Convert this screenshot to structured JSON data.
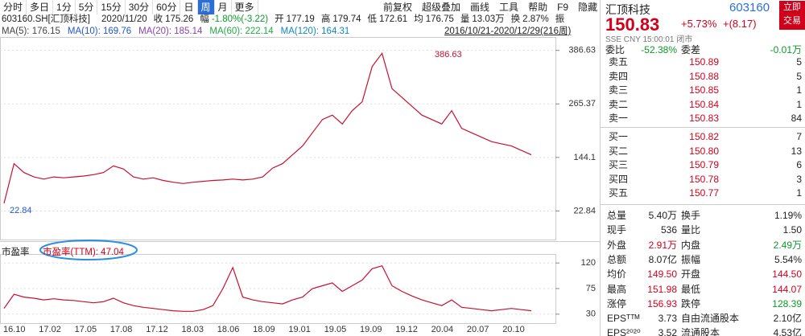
{
  "toolbar": {
    "periods": [
      "分时",
      "多日",
      "1分",
      "5分",
      "15分",
      "30分",
      "60分",
      "日",
      "周",
      "月",
      "更多"
    ],
    "active": "周",
    "tools": [
      "前复权",
      "超级叠加",
      "画线",
      "工具",
      "帮助",
      "F9",
      "隐藏"
    ]
  },
  "quote_bar": {
    "symbol": "603160.SH[汇顶科技]",
    "date": "2020/11/20",
    "items": [
      {
        "label": "收",
        "value": "175.26",
        "color": "#222"
      },
      {
        "label": "幅",
        "value": "-1.80%(-3.22)",
        "color": "#0a9a2a"
      },
      {
        "label": "开",
        "value": "177.19",
        "color": "#222"
      },
      {
        "label": "高",
        "value": "179.74",
        "color": "#222"
      },
      {
        "label": "低",
        "value": "172.61",
        "color": "#222"
      },
      {
        "label": "均",
        "value": "176.75",
        "color": "#222"
      },
      {
        "label": "量",
        "value": "13.03万",
        "color": "#222"
      },
      {
        "label": "换",
        "value": "2.87%",
        "color": "#222"
      }
    ],
    "tail": "振"
  },
  "ma_bar": [
    {
      "text": "MA(5): 176.15",
      "color": "#444"
    },
    {
      "text": "MA(10): 169.76",
      "color": "#2255cc"
    },
    {
      "text": "MA(20): 185.14",
      "color": "#8844aa"
    },
    {
      "text": "MA(60): 222.14",
      "color": "#22aa44"
    },
    {
      "text": "MA(120): 164.31",
      "color": "#1188bb"
    }
  ],
  "range_label": "2016/10/21-2020/12/29(216周)",
  "price_chart": {
    "type": "line",
    "color": "#c8102e",
    "values": [
      40,
      130,
      110,
      100,
      95,
      100,
      98,
      100,
      102,
      105,
      110,
      125,
      118,
      100,
      95,
      98,
      92,
      88,
      85,
      88,
      90,
      92,
      93,
      95,
      93,
      95,
      100,
      120,
      130,
      150,
      170,
      200,
      230,
      240,
      220,
      250,
      270,
      350,
      380,
      300,
      280,
      260,
      240,
      230,
      220,
      250,
      210,
      200,
      190,
      180,
      175,
      170,
      160,
      150
    ],
    "ylim": [
      0,
      417
    ],
    "yticks": [
      22.84,
      144.1,
      265.37,
      386.63
    ],
    "annotations": [
      "386.63",
      "22.84"
    ],
    "grid": true
  },
  "pe_chart": {
    "type": "line",
    "color": "#c8102e",
    "label": "市盈率",
    "value_label": "市盈率(TTM): 47.04",
    "values": [
      40,
      65,
      60,
      58,
      55,
      57,
      55,
      54,
      52,
      50,
      52,
      58,
      50,
      45,
      42,
      40,
      38,
      36,
      35,
      35,
      38,
      45,
      75,
      112,
      60,
      55,
      52,
      50,
      48,
      55,
      60,
      75,
      80,
      85,
      70,
      80,
      90,
      110,
      115,
      80,
      70,
      62,
      55,
      50,
      45,
      55,
      42,
      40,
      38,
      36,
      38,
      40,
      38,
      36
    ],
    "ylim": [
      17,
      133
    ],
    "yticks": [
      30,
      75,
      120
    ]
  },
  "date_labels": [
    "16.10",
    "17.02",
    "17.05",
    "17.08",
    "17.12",
    "18.03",
    "18.06",
    "18.09",
    "19.01",
    "19.05",
    "19.09",
    "19.12",
    "20.04",
    "20.07",
    "20.10"
  ],
  "side": {
    "name": "汇顶科技",
    "code": "603160",
    "trade_button": "立即交易",
    "price": "150.83",
    "change_pct": "+5.73%",
    "change": "+(8.17)",
    "status": "SSE CNY 15:00:01 闭市",
    "wei": [
      "委比",
      "-52.38%",
      "委差",
      "-0.01万"
    ],
    "sell": [
      [
        "卖五",
        "150.89",
        "5"
      ],
      [
        "卖四",
        "150.88",
        "5"
      ],
      [
        "卖三",
        "150.85",
        "1"
      ],
      [
        "卖二",
        "150.84",
        "1"
      ],
      [
        "卖一",
        "150.83",
        "84"
      ]
    ],
    "buy": [
      [
        "买一",
        "150.82",
        "7"
      ],
      [
        "买二",
        "150.80",
        "13"
      ],
      [
        "买三",
        "150.79",
        "6"
      ],
      [
        "买四",
        "150.78",
        "3"
      ],
      [
        "买五",
        "150.77",
        "1"
      ]
    ],
    "stats": [
      [
        "总量",
        "5.40万",
        "换手",
        "1.19%"
      ],
      [
        "现手",
        "536",
        "量比",
        "1.50"
      ],
      [
        "外盘",
        "2.91万",
        "内盘",
        "2.49万"
      ],
      [
        "总额",
        "8.07亿",
        "振幅",
        "5.54%"
      ],
      [
        "均价",
        "149.50",
        "开盘",
        "144.50"
      ],
      [
        "最高",
        "151.98",
        "最低",
        "144.07"
      ],
      [
        "涨停",
        "156.93",
        "跌停",
        "128.39"
      ],
      [
        "EPSᵀᵀᴹ",
        "3.73",
        "自由流通股本",
        "2.10亿"
      ],
      [
        "EPS²⁰²⁰",
        "3.52",
        "流通股本",
        "4.53亿"
      ]
    ]
  }
}
